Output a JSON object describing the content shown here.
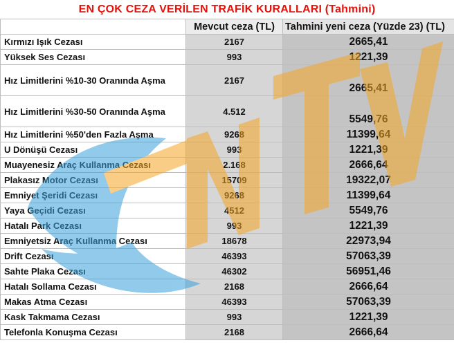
{
  "title": "EN ÇOK CEZA VERİLEN TRAFİK KURALLARI (Tahmini)",
  "columns": [
    "",
    "Mevcut ceza (TL)",
    "Tahmini yeni ceza (Yüzde 23) (TL)"
  ],
  "rows": [
    {
      "name": "Kırmızı Işık Cezası",
      "current": "2167",
      "estimate": "2665,41"
    },
    {
      "name": "Yüksek Ses Cezası",
      "current": "993",
      "estimate": "1221,39"
    },
    {
      "name": "Hız Limitlerini %10-30 Oranında Aşma",
      "current": "2167",
      "estimate": "2665,41"
    },
    {
      "name": "Hız Limitlerini %30-50 Oranında Aşma",
      "current": "4.512",
      "estimate": "5549,76"
    },
    {
      "name": "Hız Limitlerini %50'den Fazla Aşma",
      "current": "9268",
      "estimate": "11399,64"
    },
    {
      "name": "U Dönüşü Cezası",
      "current": "993",
      "estimate": "1221,39"
    },
    {
      "name": "Muayenesiz Araç Kullanma Cezası",
      "current": "2.168",
      "estimate": "2666,64"
    },
    {
      "name": "Plakasız Motor Cezası",
      "current": "15709",
      "estimate": "19322,07"
    },
    {
      "name": "Emniyet Şeridi Cezası",
      "current": "9268",
      "estimate": "11399,64"
    },
    {
      "name": "Yaya Geçidi Cezası",
      "current": "4512",
      "estimate": "5549,76"
    },
    {
      "name": "Hatalı Park Cezası",
      "current": "993",
      "estimate": "1221,39"
    },
    {
      "name": "Emniyetsiz Araç Kullanma Cezası",
      "current": "18678",
      "estimate": "22973,94"
    },
    {
      "name": "Drift Cezası",
      "current": "46393",
      "estimate": "57063,39"
    },
    {
      "name": "Sahte Plaka Cezası",
      "current": "46302",
      "estimate": "56951,46"
    },
    {
      "name": "Hatalı Sollama Cezası",
      "current": "2168",
      "estimate": "2666,64"
    },
    {
      "name": "Makas Atma Cezası",
      "current": "46393",
      "estimate": "57063,39"
    },
    {
      "name": "Kask Takmama Cezası",
      "current": "993",
      "estimate": "1221,39"
    },
    {
      "name": "Telefonla Konuşma Cezası",
      "current": "2168",
      "estimate": "2666,64"
    }
  ],
  "colors": {
    "title": "#e3120b",
    "watermark_orange": "#f5a623",
    "watermark_blue": "#3aa0dc"
  }
}
